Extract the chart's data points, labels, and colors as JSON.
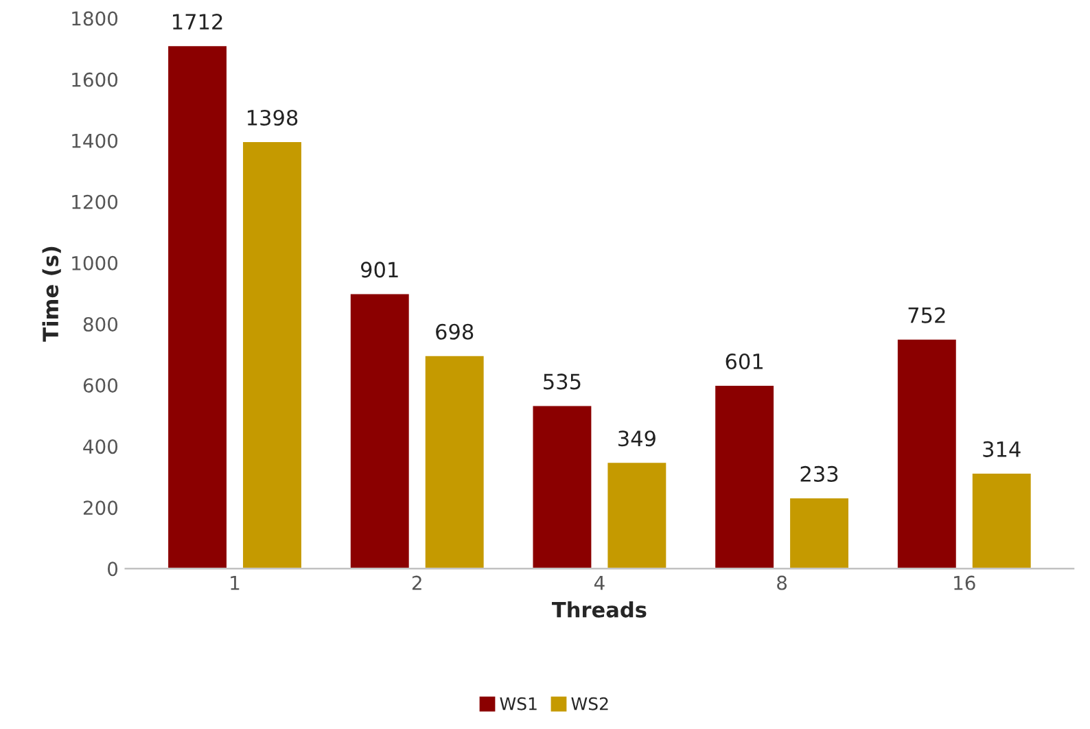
{
  "chart_data": {
    "type": "bar",
    "xlabel": "Threads",
    "ylabel": "Time (s)",
    "categories": [
      "1",
      "2",
      "4",
      "8",
      "16"
    ],
    "series": [
      {
        "name": "WS1",
        "color": "#8b0000",
        "values": [
          1712,
          901,
          535,
          601,
          752
        ]
      },
      {
        "name": "WS2",
        "color": "#c59a00",
        "values": [
          1398,
          698,
          349,
          233,
          314
        ]
      }
    ],
    "ylim": [
      0,
      1800
    ],
    "yticks": [
      0,
      200,
      400,
      600,
      800,
      1000,
      1200,
      1400,
      1600,
      1800
    ],
    "data_labels": true,
    "grid": false,
    "legend": "bottom"
  }
}
